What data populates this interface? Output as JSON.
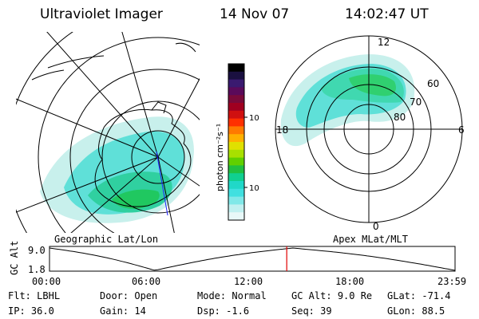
{
  "header": {
    "title": "Ultraviolet Imager",
    "date": "14 Nov 07",
    "time": "14:02:47 UT"
  },
  "maps": {
    "geo_label": "Geographic Lat/Lon",
    "polar_label": "Apex MLat/MLT",
    "polar_mlt_labels": [
      "12",
      "18",
      "6",
      "0"
    ],
    "polar_lat_labels": [
      "60",
      "70",
      "80"
    ]
  },
  "colorbar": {
    "unit_label": "photon cm⁻²s⁻¹",
    "ticks": [
      "100",
      "10"
    ],
    "colors": [
      "#000000",
      "#1a1040",
      "#3a1a70",
      "#5a0a5a",
      "#7a0a3a",
      "#a00020",
      "#d01010",
      "#ff3000",
      "#ff7a00",
      "#ffb000",
      "#e0e000",
      "#a8e000",
      "#60d000",
      "#20c040",
      "#10d090",
      "#20d8c8",
      "#40e0e0",
      "#80e8e8",
      "#c0f0f0",
      "#e8f8f8"
    ]
  },
  "timeline": {
    "y_label": "GC Alt",
    "y_ticks": [
      "9.0",
      "1.8"
    ],
    "x_ticks": [
      "00:00",
      "06:00",
      "12:00",
      "18:00",
      "23:59"
    ],
    "current_time_fraction": 0.585,
    "marker_color": "#e00000"
  },
  "footer": {
    "row1": [
      {
        "label": "Flt:",
        "value": "LBHL"
      },
      {
        "label": "Door:",
        "value": "Open"
      },
      {
        "label": "Mode:",
        "value": "Normal"
      },
      {
        "label": "GC Alt:",
        "value": "9.0 Re"
      },
      {
        "label": "GLat:",
        "value": "-71.4"
      }
    ],
    "row2": [
      {
        "label": "IP:",
        "value": "36.0"
      },
      {
        "label": "Gain:",
        "value": "14"
      },
      {
        "label": "Dsp:",
        "value": "-1.6"
      },
      {
        "label": "Seq:",
        "value": "39"
      },
      {
        "label": "GLon:",
        "value": "88.5"
      }
    ]
  }
}
